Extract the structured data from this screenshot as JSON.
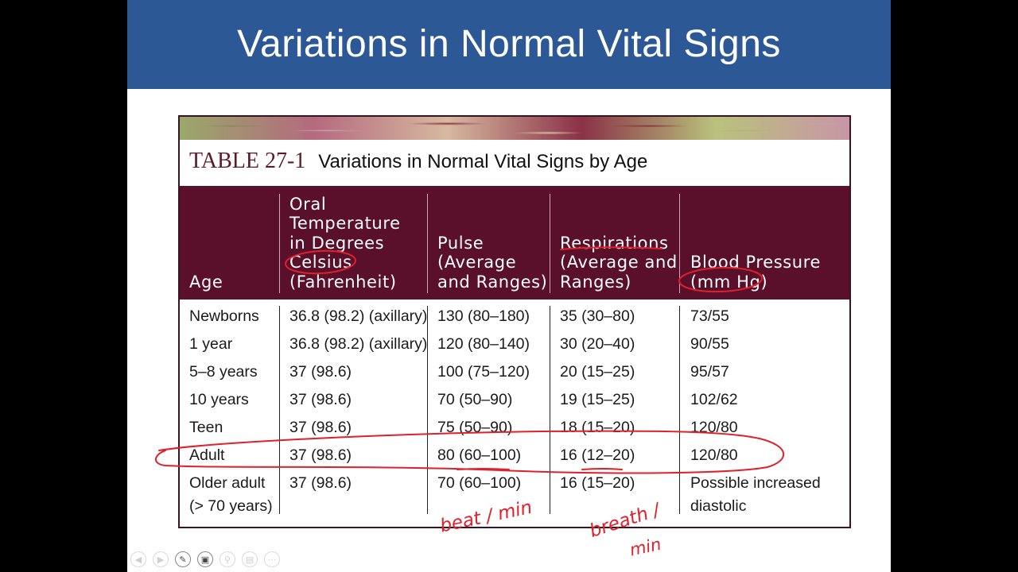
{
  "slide": {
    "title": "Variations in Normal Vital Signs"
  },
  "table": {
    "number": "TABLE 27-1",
    "name": "Variations in Normal Vital Signs by Age",
    "headers": [
      [
        "Age"
      ],
      [
        "Oral",
        "Temperature",
        "in Degrees",
        "Celsius",
        "(Fahrenheit)"
      ],
      [
        "Pulse",
        "(Average",
        "and Ranges)"
      ],
      [
        "Respirations",
        "(Average and",
        "Ranges)"
      ],
      [
        "Blood Pressure",
        "(mm Hg)"
      ]
    ],
    "rows": [
      [
        "Newborns",
        "36.8 (98.2) (axillary)",
        "130 (80–180)",
        "35 (30–80)",
        "73/55"
      ],
      [
        "1 year",
        "36.8 (98.2) (axillary)",
        "120 (80–140)",
        "30 (20–40)",
        "90/55"
      ],
      [
        "5–8 years",
        "37 (98.6)",
        "100 (75–120)",
        "20 (15–25)",
        "95/57"
      ],
      [
        "10 years",
        "37 (98.6)",
        "70 (50–90)",
        "19 (15–25)",
        "102/62"
      ],
      [
        "Teen",
        "37 (98.6)",
        "75 (50–90)",
        "18 (15–20)",
        "120/80"
      ],
      [
        "Adult",
        "37 (98.6)",
        "80 (60–100)",
        "16 (12–20)",
        "120/80"
      ],
      [
        "Older adult (> 70 years)",
        "37 (98.6)",
        "70 (60–100)",
        "16 (15–20)",
        "Possible increased diastolic"
      ]
    ]
  },
  "annotations": {
    "pulse_note": "beat / min",
    "resp_note_1": "breath /",
    "resp_note_2": "min",
    "ink_color": "#e0202a"
  },
  "player_controls": {
    "icons": [
      "previous-icon",
      "next-icon",
      "pen-icon",
      "slides-icon",
      "zoom-icon",
      "display-icon",
      "more-icon"
    ]
  }
}
